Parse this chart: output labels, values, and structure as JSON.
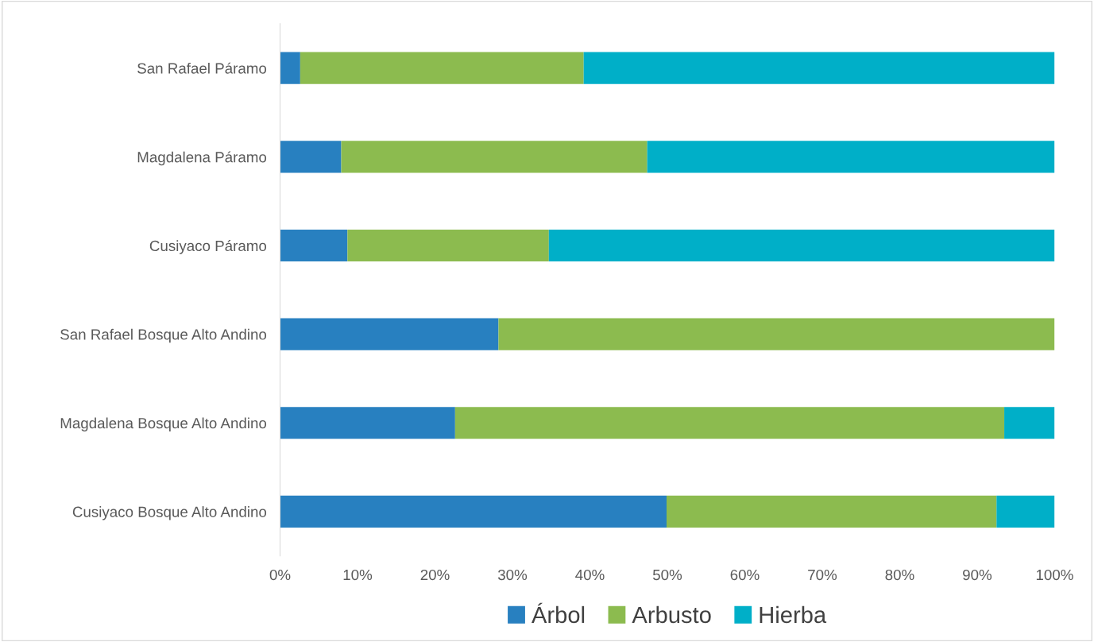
{
  "chart_data": {
    "type": "bar",
    "orientation": "horizontal",
    "stacked": true,
    "categories": [
      "San Rafael Páramo",
      "Magdalena Páramo",
      "Cusiyaco Páramo",
      "San Rafael Bosque Alto Andino",
      "Magdalena Bosque Alto Andino",
      "Cusiyaco Bosque Alto Andino"
    ],
    "series": [
      {
        "name": "Árbol",
        "color": "#2880c0",
        "values": [
          2.6,
          7.9,
          8.7,
          28.2,
          22.6,
          49.9
        ]
      },
      {
        "name": "Arbusto",
        "color": "#8cbb4f",
        "values": [
          36.6,
          39.5,
          26.0,
          71.8,
          70.9,
          42.6
        ]
      },
      {
        "name": "Hierba",
        "color": "#00afc8",
        "values": [
          60.8,
          52.6,
          65.3,
          0,
          6.5,
          7.5
        ]
      }
    ],
    "xlim": [
      0,
      100
    ],
    "xticks": [
      {
        "value": 0,
        "label": "0%"
      },
      {
        "value": 10,
        "label": "10%"
      },
      {
        "value": 20,
        "label": "20%"
      },
      {
        "value": 30,
        "label": "30%"
      },
      {
        "value": 40,
        "label": "40%"
      },
      {
        "value": 50,
        "label": "50%"
      },
      {
        "value": 60,
        "label": "60%"
      },
      {
        "value": 70,
        "label": "70%"
      },
      {
        "value": 80,
        "label": "80%"
      },
      {
        "value": 90,
        "label": "90%"
      },
      {
        "value": 100,
        "label": "100%"
      }
    ],
    "grid": false,
    "legend": "bottom"
  }
}
